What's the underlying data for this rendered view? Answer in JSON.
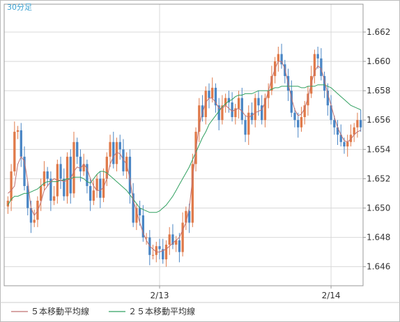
{
  "chart_data": {
    "type": "candlestick",
    "period_label": "30分足",
    "x_tick_labels": [
      "2/13",
      "2/14"
    ],
    "x_tick_index": [
      46,
      98
    ],
    "y_ticks": [
      1.646,
      1.648,
      1.65,
      1.652,
      1.654,
      1.656,
      1.658,
      1.66,
      1.662
    ],
    "y_tick_labels": [
      "1.646",
      "1.648",
      "1.650",
      "1.652",
      "1.654",
      "1.656",
      "1.658",
      "1.660",
      "1.662"
    ],
    "ylim": [
      1.6447,
      1.6639
    ],
    "grid": true,
    "legend": [
      {
        "name": "５本移動平均線",
        "color": "#c07070"
      },
      {
        "name": "２５本移動平均線",
        "color": "#30a060"
      }
    ],
    "colors": {
      "up": "#e07a4a",
      "down": "#4a86c5",
      "ma5": "#c07070",
      "ma25": "#30a060",
      "grid": "#d8d8d8",
      "axis": "#999999"
    },
    "close": [
      1.6505,
      1.6525,
      1.6552,
      1.6553,
      1.6535,
      1.6515,
      1.65,
      1.649,
      1.6492,
      1.6505,
      1.6515,
      1.6525,
      1.652,
      1.6505,
      1.6508,
      1.653,
      1.652,
      1.6508,
      1.6535,
      1.651,
      1.6545,
      1.6535,
      1.6525,
      1.653,
      1.6515,
      1.6505,
      1.6512,
      1.652,
      1.6507,
      1.652,
      1.6535,
      1.6545,
      1.653,
      1.6545,
      1.654,
      1.6525,
      1.6535,
      1.651,
      1.649,
      1.65,
      1.6495,
      1.648,
      1.648,
      1.6468,
      1.6468,
      1.6474,
      1.6472,
      1.6465,
      1.6475,
      1.6482,
      1.6475,
      1.6478,
      1.647,
      1.649,
      1.6498,
      1.649,
      1.653,
      1.6552,
      1.657,
      1.6562,
      1.658,
      1.6575,
      1.6582,
      1.657,
      1.656,
      1.657,
      1.6575,
      1.6572,
      1.6562,
      1.6568,
      1.6575,
      1.656,
      1.655,
      1.6565,
      1.656,
      1.6575,
      1.657,
      1.656,
      1.6575,
      1.658,
      1.659,
      1.66,
      1.6605,
      1.6598,
      1.659,
      1.658,
      1.6565,
      1.656,
      1.6555,
      1.6562,
      1.657,
      1.6578,
      1.659,
      1.6605,
      1.6602,
      1.659,
      1.658,
      1.657,
      1.656,
      1.6555,
      1.655,
      1.6545,
      1.6542,
      1.6545,
      1.655,
      1.6555,
      1.656,
      1.6555
    ],
    "ma5": [
      1.651,
      1.6512,
      1.6515,
      1.653,
      1.6535,
      1.6532,
      1.6518,
      1.65,
      1.6495,
      1.6498,
      1.6504,
      1.6512,
      1.6515,
      1.6518,
      1.652,
      1.6519,
      1.6519,
      1.6518,
      1.6519,
      1.652,
      1.6525,
      1.6528,
      1.6527,
      1.653,
      1.6527,
      1.652,
      1.6515,
      1.6512,
      1.6512,
      1.6514,
      1.652,
      1.653,
      1.6535,
      1.6538,
      1.6537,
      1.6533,
      1.653,
      1.652,
      1.6505,
      1.6498,
      1.649,
      1.6483,
      1.6478,
      1.6474,
      1.6472,
      1.647,
      1.647,
      1.6471,
      1.6472,
      1.6474,
      1.6476,
      1.6478,
      1.648,
      1.6485,
      1.649,
      1.65,
      1.652,
      1.654,
      1.6556,
      1.6565,
      1.6572,
      1.6575,
      1.6575,
      1.6572,
      1.6568,
      1.6568,
      1.657,
      1.6568,
      1.6566,
      1.6567,
      1.6568,
      1.6566,
      1.6563,
      1.6562,
      1.6563,
      1.6565,
      1.6566,
      1.6567,
      1.6572,
      1.658,
      1.6588,
      1.6595,
      1.66,
      1.66,
      1.6595,
      1.6585,
      1.6575,
      1.6567,
      1.6563,
      1.6564,
      1.6568,
      1.6575,
      1.6585,
      1.6593,
      1.6597,
      1.6595,
      1.6587,
      1.6578,
      1.657,
      1.6562,
      1.6555,
      1.655,
      1.6546,
      1.6545,
      1.6547,
      1.655,
      1.6552,
      1.6553
    ],
    "ma25": [
      1.6502,
      1.6506,
      1.6508,
      1.6508,
      1.6509,
      1.651,
      1.651,
      1.6511,
      1.6512,
      1.6513,
      1.6515,
      1.6517,
      1.6518,
      1.6518,
      1.6518,
      1.6518,
      1.6519,
      1.6519,
      1.652,
      1.652,
      1.6521,
      1.6521,
      1.6521,
      1.652,
      1.6518,
      1.6517,
      1.652,
      1.6523,
      1.6525,
      1.6525,
      1.6524,
      1.6522,
      1.652,
      1.6518,
      1.6516,
      1.6514,
      1.6512,
      1.6509,
      1.6506,
      1.6503,
      1.65,
      1.6499,
      1.6498,
      1.6497,
      1.6497,
      1.6497,
      1.6498,
      1.65,
      1.6502,
      1.6505,
      1.6508,
      1.6512,
      1.6516,
      1.652,
      1.6524,
      1.6528,
      1.6533,
      1.6538,
      1.6543,
      1.6548,
      1.6552,
      1.6557,
      1.656,
      1.6563,
      1.6566,
      1.6569,
      1.6571,
      1.6573,
      1.6574,
      1.6576,
      1.6577,
      1.6577,
      1.6578,
      1.6578,
      1.6578,
      1.6579,
      1.658,
      1.658,
      1.658,
      1.658,
      1.6581,
      1.6582,
      1.6582,
      1.6583,
      1.6583,
      1.6583,
      1.6583,
      1.6583,
      1.6583,
      1.6582,
      1.6582,
      1.6583,
      1.6583,
      1.6583,
      1.6584,
      1.6584,
      1.6584,
      1.6583,
      1.6582,
      1.658,
      1.6578,
      1.6576,
      1.6574,
      1.6572,
      1.657,
      1.6569,
      1.6568,
      1.6567
    ]
  }
}
